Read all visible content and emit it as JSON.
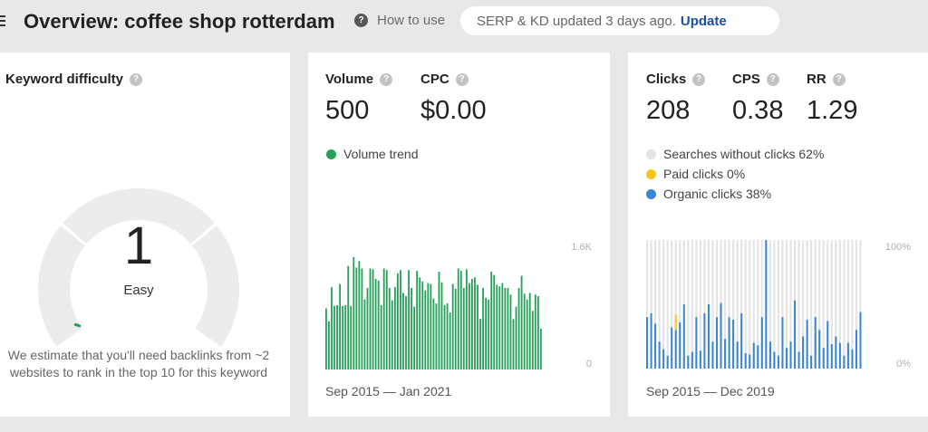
{
  "header": {
    "title": "Overview: coffee shop rotterdam",
    "how_to_use": "How to use",
    "status_text": "SERP & KD updated 3 days ago.",
    "update_link": "Update",
    "help_glyph": "?"
  },
  "kd_card": {
    "label": "Keyword difficulty",
    "value": "1",
    "level": "Easy",
    "description": "We estimate that you'll need backlinks from ~2 websites to rank in the top 10 for this keyword",
    "score": 1,
    "score_max": 100,
    "accent_color": "#1f9d55"
  },
  "volume_card": {
    "volume_label": "Volume",
    "volume_value": "500",
    "cpc_label": "CPC",
    "cpc_value": "$0.00",
    "trend_label": "Volume trend",
    "trend_color": "#27a05a",
    "axis_max_label": "1.6K",
    "axis_min_label": "0",
    "date_range": "Sep 2015 — Jan 2021"
  },
  "clicks_card": {
    "clicks_label": "Clicks",
    "clicks_value": "208",
    "cps_label": "CPS",
    "cps_value": "0.38",
    "rr_label": "RR",
    "rr_value": "1.29",
    "legend": [
      {
        "label": "Searches without clicks 62%",
        "color": "#e3e3e3"
      },
      {
        "label": "Paid clicks 0%",
        "color": "#f5c518"
      },
      {
        "label": "Organic clicks 38%",
        "color": "#3a86d6"
      }
    ],
    "axis_max_label": "100%",
    "axis_min_label": "0%",
    "date_range": "Sep 2015 — Dec 2019"
  },
  "chart_data": [
    {
      "type": "bar",
      "series": [
        {
          "name": "Volume trend",
          "color": "#27a05a"
        }
      ],
      "ylim": [
        0,
        1600
      ],
      "ytick_labels": [
        "0",
        "1.6K"
      ],
      "x_range": [
        "Sep 2015",
        "Jan 2021"
      ],
      "values": [
        750,
        590,
        1010,
        780,
        790,
        1050,
        780,
        790,
        1270,
        780,
        1380,
        1250,
        1330,
        1240,
        860,
        1000,
        1240,
        1230,
        1110,
        1090,
        790,
        1240,
        1220,
        1000,
        850,
        1010,
        1180,
        1220,
        940,
        900,
        1220,
        1000,
        770,
        1210,
        1130,
        1080,
        970,
        1060,
        1050,
        870,
        810,
        1200,
        1070,
        790,
        810,
        700,
        1050,
        990,
        1240,
        1210,
        1000,
        1230,
        1060,
        1110,
        1130,
        1040,
        620,
        1000,
        880,
        860,
        1200,
        1160,
        1040,
        1020,
        1060,
        1000,
        1000,
        920,
        620,
        770,
        1000,
        1150,
        930,
        860,
        940,
        720,
        920,
        900,
        500
      ]
    },
    {
      "type": "bar",
      "stacked": true,
      "ylim": [
        0,
        100
      ],
      "ytick_labels": [
        "0%",
        "100%"
      ],
      "x_range": [
        "Sep 2015",
        "Dec 2019"
      ],
      "series": [
        {
          "name": "Organic clicks",
          "color": "#3a86d6",
          "values": [
            40,
            43,
            35,
            21,
            15,
            10,
            32,
            30,
            36,
            50,
            10,
            13,
            40,
            14,
            43,
            50,
            21,
            40,
            51,
            23,
            40,
            38,
            21,
            43,
            12,
            11,
            20,
            18,
            40,
            100,
            21,
            13,
            10,
            40,
            16,
            21,
            53,
            13,
            25,
            38,
            10,
            40,
            30,
            16,
            37,
            19,
            25,
            20,
            10,
            20,
            15,
            30,
            44
          ]
        },
        {
          "name": "Paid clicks",
          "color": "#f5c518",
          "values": [
            0,
            0,
            0,
            0,
            0,
            0,
            0,
            12,
            0,
            0,
            0,
            0,
            0,
            0,
            0,
            0,
            0,
            0,
            0,
            0,
            0,
            0,
            0,
            0,
            0,
            0,
            0,
            0,
            0,
            0,
            0,
            0,
            0,
            0,
            0,
            0,
            0,
            0,
            0,
            0,
            0,
            0,
            0,
            0,
            0,
            0,
            0,
            0,
            0,
            0,
            0,
            0,
            0
          ]
        }
      ]
    }
  ]
}
